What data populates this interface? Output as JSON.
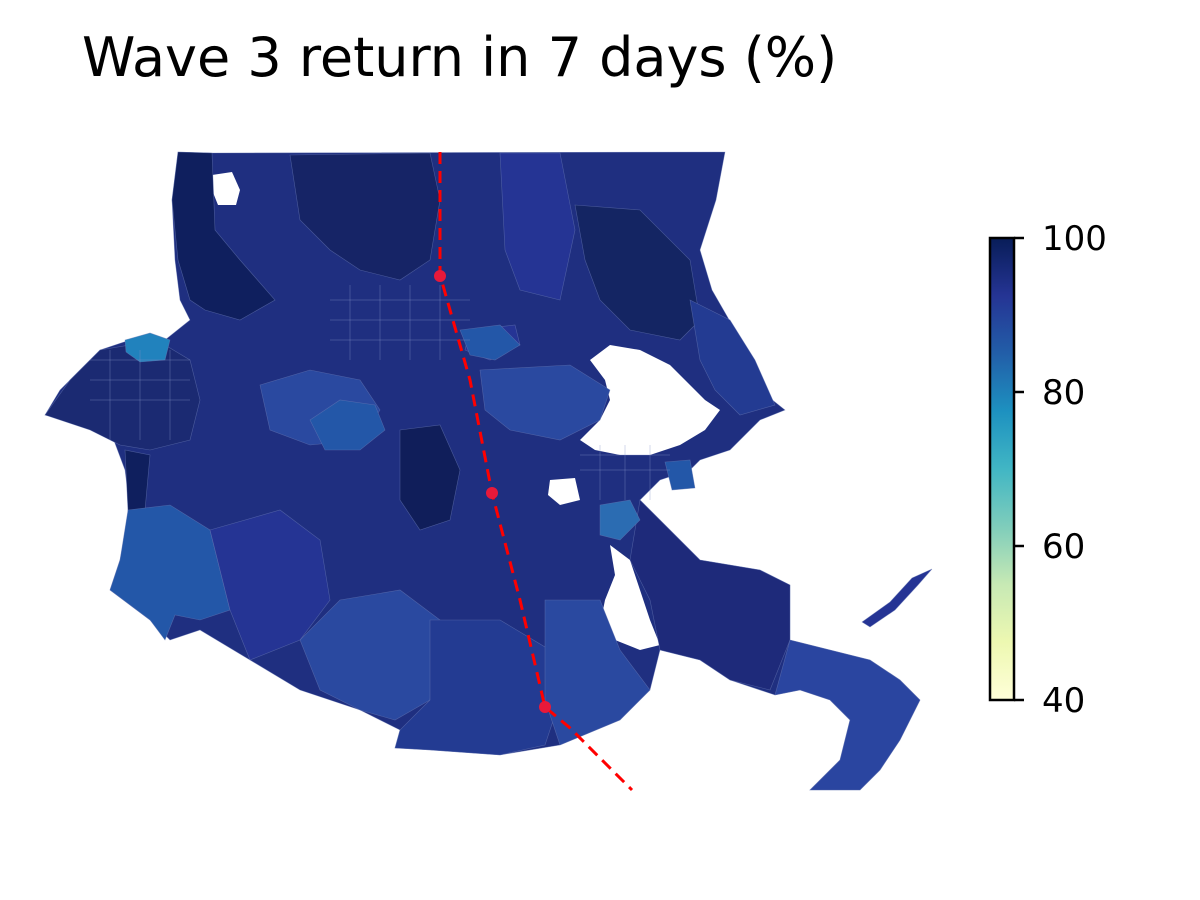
{
  "title": "Wave 3 return in 7 days (%)",
  "colorbar": {
    "colormap": "YlGnBu",
    "min": 40,
    "max": 100,
    "ticks": [
      {
        "value": 100,
        "label": "100"
      },
      {
        "value": 80,
        "label": "80"
      },
      {
        "value": 60,
        "label": "60"
      },
      {
        "value": 40,
        "label": "40"
      }
    ],
    "stops": [
      "#ffffd9",
      "#edf8b1",
      "#c7e9b4",
      "#7fcdbb",
      "#41b6c4",
      "#1d91c0",
      "#225ea8",
      "#253494",
      "#081d58"
    ]
  },
  "map": {
    "fill_colors": {
      "darkest": "#0f1f5e",
      "dark": "#1b2a72",
      "mid": "#233b92",
      "medium": "#2a49a0",
      "lighter": "#2357a8",
      "light": "#2182bd"
    },
    "track_color": "#ff0000"
  }
}
